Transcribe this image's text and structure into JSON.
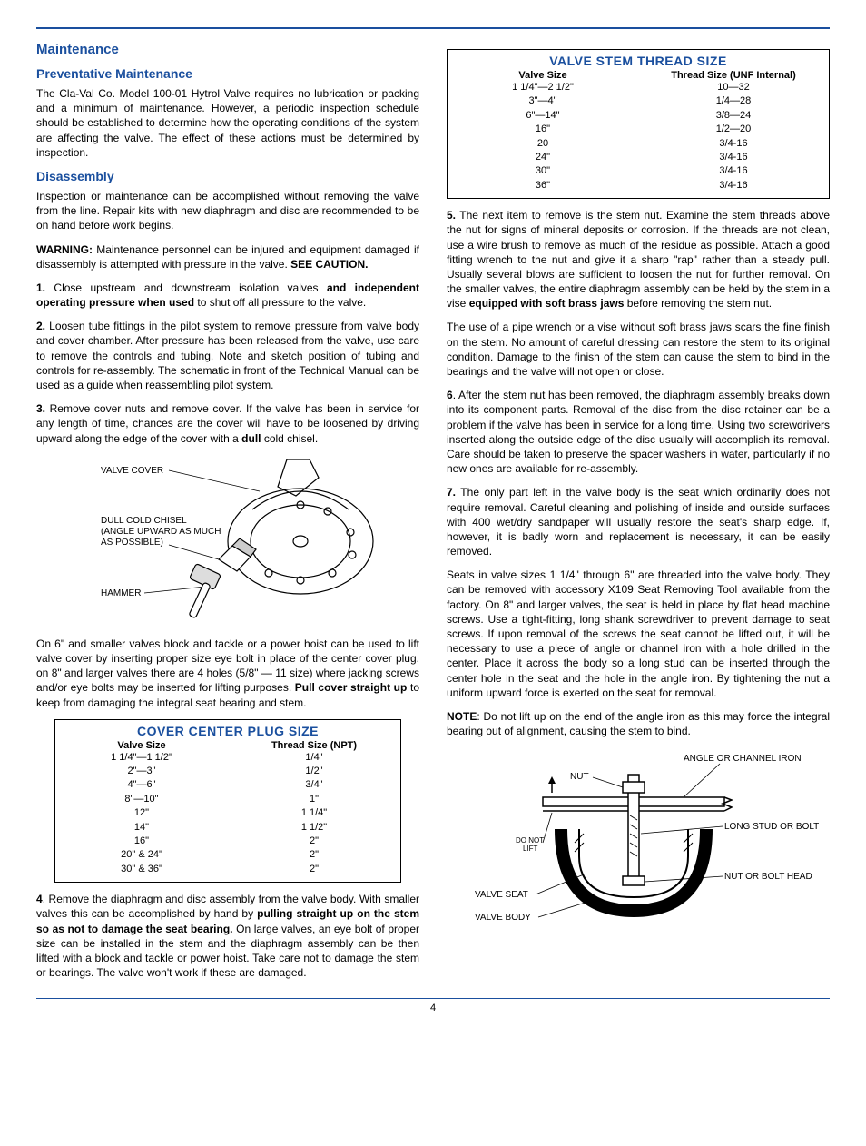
{
  "colors": {
    "accent": "#1a4f9e",
    "text": "#000000",
    "background": "#ffffff",
    "border": "#000000"
  },
  "typography": {
    "body_font": "Arial",
    "body_size_pt": 9,
    "heading_size_pt": 11,
    "heading_weight": "bold"
  },
  "page_number": "4",
  "left": {
    "h_maintenance": "Maintenance",
    "h_preventative": "Preventative Maintenance",
    "p_preventative": "The Cla-Val Co. Model 100-01 Hytrol Valve requires no lubrication or packing and a minimum of maintenance. However, a periodic inspection schedule should be established to determine how the operating conditions of the system are affecting the valve. The effect of these actions must be determined by inspection.",
    "h_disassembly": "Disassembly",
    "p_disassembly_intro": "Inspection or maintenance can be accomplished without removing the valve from the line.  Repair kits with new diaphragm and disc are recommended to be on hand before work begins.",
    "p_warning_label": "WARNING:",
    "p_warning_text": " Maintenance personnel can be injured and equipment damaged if disassembly is attempted with pressure in the valve. ",
    "p_warning_see": "SEE CAUTION.",
    "step1_num": "1.",
    "step1_a": " Close upstream and downstream isolation valves ",
    "step1_b": "and independent operating pressure when used",
    "step1_c": " to shut off all pressure to the valve.",
    "step2_num": "2.",
    "step2_text": " Loosen tube fittings in the pilot system to remove pressure from valve body and cover chamber. After pressure has been released from the valve, use care to remove the controls and tubing. Note and sketch  position of tubing and controls for re-assembly. The schematic in front of the Technical Manual can be used as a guide when reassembling pilot system.",
    "step3_num": "3.",
    "step3_a": " Remove cover nuts and remove cover. If the valve has been in service for any length of time, chances are the cover will have to be loosened by driving upward along the edge of the cover with a ",
    "step3_b": "dull",
    "step3_c": " cold chisel.",
    "fig1_labels": {
      "valve_cover": "VALVE COVER",
      "chisel": "DULL COLD CHISEL\n(ANGLE UPWARD AS MUCH\nAS POSSIBLE)",
      "hammer": "HAMMER"
    },
    "p_after_fig1_a": "On 6\" and smaller valves block and tackle or a power hoist can be used to lift valve cover by inserting proper size eye bolt in place of the center cover plug. on 8\" and larger valves there are 4 holes (5/8\" — 11 size) where jacking screws and/or eye bolts  may be inserted for lifting purposes. ",
    "p_after_fig1_b": "Pull cover straight up",
    "p_after_fig1_c": " to keep from damaging the  integral seat bearing and stem.",
    "table_cover": {
      "title": "COVER CENTER PLUG SIZE",
      "head1": "Valve Size",
      "head2": "Thread Size (NPT)",
      "rows": [
        [
          "1 1/4\"—1 1/2\"",
          "1/4\""
        ],
        [
          "2\"—3\"",
          "1/2\""
        ],
        [
          "4\"—6\"",
          "3/4\""
        ],
        [
          "8\"—10\"",
          "1\""
        ],
        [
          "12\"",
          "1 1/4\""
        ],
        [
          "14\"",
          "1 1/2\""
        ],
        [
          "16\"",
          "2\""
        ],
        [
          "20\" & 24\"",
          "2\""
        ],
        [
          "30\" & 36\"",
          "2\""
        ]
      ],
      "border_color": "#000000",
      "title_color": "#1a4f9e",
      "title_fontsize": 14,
      "row_fontsize": 11
    },
    "step4_num": "4",
    "step4_a": ". Remove the diaphragm and disc assembly from the valve body. With smaller valves this can be accomplished by hand by ",
    "step4_b": "pulling straight up on the stem so as not to damage the seat bearing.",
    "step4_c": " On large valves, an eye bolt of proper size can be installed in the stem and the diaphragm assembly can be then lifted with a block and tackle or power hoist. Take care not to damage the stem or bearings. The valve won't work if these are damaged."
  },
  "right": {
    "table_stem": {
      "title": "VALVE STEM THREAD SIZE",
      "head1": "Valve Size",
      "head2": "Thread Size (UNF Internal)",
      "rows": [
        [
          "1 1/4\"—2 1/2\"",
          "10—32"
        ],
        [
          "3\"—4\"",
          "1/4—28"
        ],
        [
          "6\"—14\"",
          "3/8—24"
        ],
        [
          "16\"",
          "1/2—20"
        ],
        [
          "20",
          "3/4-16"
        ],
        [
          "24\"",
          "3/4-16"
        ],
        [
          "30\"",
          "3/4-16"
        ],
        [
          "36\"",
          "3/4-16"
        ]
      ],
      "border_color": "#000000",
      "title_color": "#1a4f9e",
      "title_fontsize": 14,
      "row_fontsize": 11
    },
    "step5_num": "5.",
    "step5_a": " The next item to remove is the stem nut. Examine the stem threads above the nut for signs of mineral deposits or corrosion. If the threads are not clean, use a wire brush to remove as much of the residue as possible. Attach a good fitting wrench to the nut and give it a sharp \"rap\" rather than a steady pull. Usually several blows are sufficient to loosen the nut for further removal. On the smaller valves, the entire diaphragm assembly can be held by the stem in a vise ",
    "step5_b": "equipped with soft brass jaws",
    "step5_c": " before removing the stem nut.",
    "p_pipe_wrench": "The use of a pipe wrench or a vise without soft brass jaws scars the fine finish on the stem. No amount of careful dressing can restore the stem to its original condition. Damage to the finish of the stem can cause the stem to bind in the bearings and the valve will not open or close.",
    "step6_num": "6",
    "step6_text": ". After the stem nut has been removed, the diaphragm assembly breaks down into its component parts. Removal of the disc from the disc retainer can be a problem if the valve has been in service for a long time. Using two screwdrivers inserted along the outside edge of the disc usually will accomplish its removal. Care should be taken to preserve the spacer washers in water, particularly if no new ones are available for re-assembly.",
    "step7_num": "7.",
    "step7_text": " The only part left in the valve body is the seat which ordinarily does not require removal. Careful cleaning and polishing of inside and outside surfaces with 400 wet/dry sandpaper will usually restore the seat's sharp edge. If, however, it is badly worn and replacement is necessary, it can be easily removed.",
    "p_seats": "Seats in valve sizes 1 1/4\" through 6\" are threaded into the valve body.  They can be removed with accessory X109 Seat Removing Tool available from the factory. On 8\" and larger valves, the seat is held in place by flat head machine screws.  Use a tight-fitting, long shank screwdriver to prevent damage to seat screws. If upon removal of the screws the seat cannot be lifted out, it will be necessary to use a piece of angle or channel iron with a hole drilled in the center. Place it across the body so a long stud can be inserted through the  center hole in the seat and the hole in the angle iron. By tightening the nut a uniform upward force is exerted on the seat for removal.",
    "note_label": "NOTE",
    "note_text": ": Do not lift up on the end of the angle iron as this may force the integral bearing out of alignment, causing the stem to bind.",
    "fig2_labels": {
      "angle_iron": "ANGLE OR CHANNEL IRON",
      "nut": "NUT",
      "long_stud": "LONG STUD OR BOLT",
      "do_not_lift": "DO NOT\nLIFT",
      "nut_bolt_head": "NUT OR BOLT HEAD",
      "valve_seat": "VALVE SEAT",
      "valve_body": "VALVE BODY"
    }
  }
}
